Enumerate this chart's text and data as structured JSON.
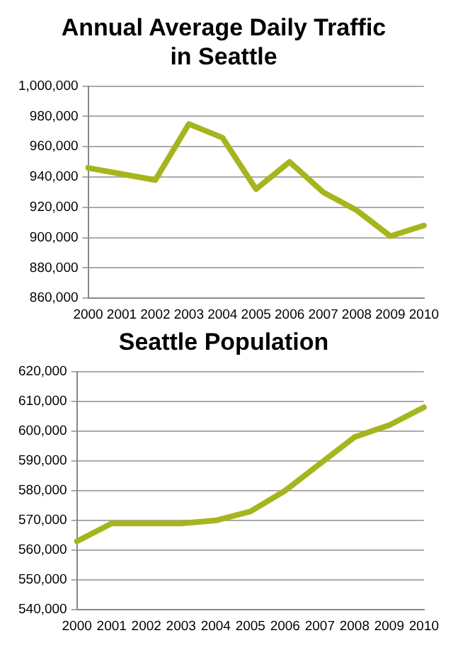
{
  "chart_data": [
    {
      "type": "line",
      "title": "Annual Average Daily Traffic in Seattle",
      "categories": [
        "2000",
        "2001",
        "2002",
        "2003",
        "2004",
        "2005",
        "2006",
        "2007",
        "2008",
        "2009",
        "2010"
      ],
      "series": [
        {
          "color": "#a5b51d",
          "values": [
            946000,
            942000,
            938000,
            975000,
            966000,
            932000,
            950000,
            930000,
            918000,
            901000,
            908000
          ]
        }
      ],
      "ylim": [
        860000,
        1000000
      ],
      "yticks": [
        {
          "value": 860000,
          "label": "860,000"
        },
        {
          "value": 880000,
          "label": "880,000"
        },
        {
          "value": 900000,
          "label": "900,000"
        },
        {
          "value": 920000,
          "label": "920,000"
        },
        {
          "value": 940000,
          "label": "940,000"
        },
        {
          "value": 960000,
          "label": "960,000"
        },
        {
          "value": 980000,
          "label": "980,000"
        },
        {
          "value": 1000000,
          "label": "1,000,000"
        }
      ],
      "grid": "y",
      "legend": false,
      "marker": "none",
      "line_style": "solid"
    },
    {
      "type": "line",
      "title": "Seattle Population",
      "categories": [
        "2000",
        "2001",
        "2002",
        "2003",
        "2004",
        "2005",
        "2006",
        "2007",
        "2008",
        "2009",
        "2010"
      ],
      "series": [
        {
          "color": "#a5b51d",
          "values": [
            563000,
            569000,
            569000,
            569000,
            570000,
            573000,
            580000,
            589000,
            598000,
            602000,
            608000
          ]
        }
      ],
      "ylim": [
        540000,
        620000
      ],
      "yticks": [
        {
          "value": 540000,
          "label": "540,000"
        },
        {
          "value": 550000,
          "label": "550,000"
        },
        {
          "value": 560000,
          "label": "560,000"
        },
        {
          "value": 570000,
          "label": "570,000"
        },
        {
          "value": 580000,
          "label": "580,000"
        },
        {
          "value": 590000,
          "label": "590,000"
        },
        {
          "value": 600000,
          "label": "600,000"
        },
        {
          "value": 610000,
          "label": "610,000"
        },
        {
          "value": 620000,
          "label": "620,000"
        }
      ],
      "grid": "y",
      "legend": false,
      "marker": "none",
      "line_style": "solid"
    }
  ]
}
